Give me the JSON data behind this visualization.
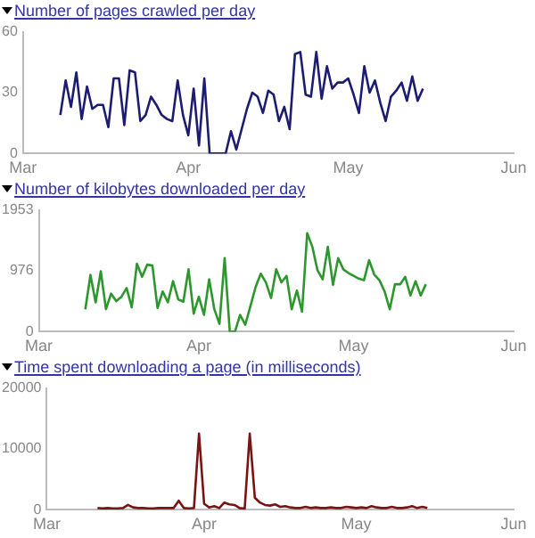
{
  "chart_data": [
    {
      "type": "line",
      "title": "Number of pages crawled per day",
      "color": "#1c1c72",
      "marker": "none",
      "grid": false,
      "legend": false,
      "x": [
        "--03-08",
        "--03-09",
        "--03-10",
        "--03-11",
        "--03-12",
        "--03-13",
        "--03-14",
        "--03-15",
        "--03-16",
        "--03-17",
        "--03-18",
        "--03-19",
        "--03-20",
        "--03-21",
        "--03-22",
        "--03-23",
        "--03-24",
        "--03-25",
        "--03-26",
        "--03-27",
        "--03-28",
        "--03-29",
        "--03-30",
        "--03-31",
        "--04-01",
        "--04-02",
        "--04-03",
        "--04-04",
        "--04-05",
        "--04-06",
        "--04-07",
        "--04-08",
        "--04-09",
        "--04-10",
        "--04-11",
        "--04-12",
        "--04-13",
        "--04-14",
        "--04-15",
        "--04-16",
        "--04-17",
        "--04-18",
        "--04-19",
        "--04-20",
        "--04-21",
        "--04-22",
        "--04-23",
        "--04-24",
        "--04-25",
        "--04-26",
        "--04-27",
        "--04-28",
        "--04-29",
        "--04-30",
        "--05-01",
        "--05-02",
        "--05-03",
        "--05-04",
        "--05-05",
        "--05-06",
        "--05-07",
        "--05-08",
        "--05-09",
        "--05-10",
        "--05-11",
        "--05-12",
        "--05-13",
        "--05-14",
        "--05-15"
      ],
      "values": [
        19,
        36,
        23,
        40,
        17,
        33,
        22,
        24,
        24,
        13,
        37,
        37,
        14,
        41,
        40,
        16,
        19,
        28,
        24,
        19,
        17,
        16,
        36,
        19,
        9,
        32,
        4,
        37,
        0,
        0,
        0,
        0,
        11,
        2,
        12,
        22,
        30,
        28,
        20,
        31,
        29,
        16,
        23,
        12,
        49,
        50,
        29,
        28,
        50,
        27,
        43,
        32,
        35,
        35,
        37,
        29,
        20,
        43,
        30,
        36,
        25,
        16,
        28,
        31,
        35,
        26,
        38,
        26,
        32
      ],
      "xlim": [
        "--03-01",
        "--06-01"
      ],
      "xticks": [
        {
          "value": "--03-01",
          "label": "Mar"
        },
        {
          "value": "--04-01",
          "label": "Apr"
        },
        {
          "value": "--05-01",
          "label": "May"
        },
        {
          "value": "--06-01",
          "label": "Jun"
        }
      ],
      "ylim": [
        0,
        60
      ],
      "yticks": [
        0,
        30,
        60
      ]
    },
    {
      "type": "line",
      "title": "Number of kilobytes downloaded per day",
      "color": "#2e962e",
      "marker": "none",
      "grid": false,
      "legend": false,
      "x": [
        "--03-10",
        "--03-11",
        "--03-12",
        "--03-13",
        "--03-14",
        "--03-15",
        "--03-16",
        "--03-17",
        "--03-18",
        "--03-19",
        "--03-20",
        "--03-21",
        "--03-22",
        "--03-23",
        "--03-24",
        "--03-25",
        "--03-26",
        "--03-27",
        "--03-28",
        "--03-29",
        "--03-30",
        "--03-31",
        "--04-01",
        "--04-02",
        "--04-03",
        "--04-04",
        "--04-05",
        "--04-06",
        "--04-07",
        "--04-08",
        "--04-09",
        "--04-10",
        "--04-11",
        "--04-12",
        "--04-13",
        "--04-14",
        "--04-15",
        "--04-16",
        "--04-17",
        "--04-18",
        "--04-19",
        "--04-20",
        "--04-21",
        "--04-22",
        "--04-23",
        "--04-24",
        "--04-25",
        "--04-26",
        "--04-27",
        "--04-28",
        "--04-29",
        "--04-30",
        "--05-01",
        "--05-02",
        "--05-03",
        "--05-04",
        "--05-05",
        "--05-06",
        "--05-07",
        "--05-08",
        "--05-09",
        "--05-10",
        "--05-11",
        "--05-12",
        "--05-13",
        "--05-14",
        "--05-15"
      ],
      "values": [
        360,
        910,
        470,
        970,
        360,
        610,
        490,
        560,
        700,
        390,
        1090,
        880,
        1075,
        1060,
        380,
        645,
        470,
        810,
        520,
        480,
        1000,
        290,
        560,
        270,
        840,
        360,
        125,
        1180,
        0,
        0,
        270,
        110,
        410,
        715,
        930,
        790,
        540,
        1000,
        790,
        895,
        360,
        660,
        320,
        1580,
        1360,
        985,
        840,
        1360,
        750,
        1180,
        1000,
        940,
        895,
        850,
        825,
        1145,
        915,
        825,
        645,
        360,
        760,
        760,
        880,
        580,
        810,
        580,
        760
      ],
      "xlim": [
        "--03-01",
        "--06-01"
      ],
      "xticks": [
        {
          "value": "--03-01",
          "label": "Mar"
        },
        {
          "value": "--04-01",
          "label": "Apr"
        },
        {
          "value": "--05-01",
          "label": "May"
        },
        {
          "value": "--06-01",
          "label": "Jun"
        }
      ],
      "ylim": [
        0,
        1953
      ],
      "yticks": [
        0,
        976,
        1953
      ]
    },
    {
      "type": "line",
      "title": "Time spent downloading a page (in milliseconds)",
      "color": "#7a1414",
      "marker": "none",
      "grid": false,
      "legend": false,
      "x": [
        "--03-11",
        "--03-12",
        "--03-13",
        "--03-14",
        "--03-15",
        "--03-16",
        "--03-17",
        "--03-18",
        "--03-19",
        "--03-20",
        "--03-21",
        "--03-22",
        "--03-23",
        "--03-24",
        "--03-25",
        "--03-26",
        "--03-27",
        "--03-28",
        "--03-29",
        "--03-30",
        "--03-31",
        "--04-01",
        "--04-02",
        "--04-03",
        "--04-04",
        "--04-05",
        "--04-06",
        "--04-07",
        "--04-08",
        "--04-09",
        "--04-10",
        "--04-11",
        "--04-12",
        "--04-13",
        "--04-14",
        "--04-15",
        "--04-16",
        "--04-17",
        "--04-18",
        "--04-19",
        "--04-20",
        "--04-21",
        "--04-22",
        "--04-23",
        "--04-24",
        "--04-25",
        "--04-26",
        "--04-27",
        "--04-28",
        "--04-29",
        "--04-30",
        "--05-01",
        "--05-02",
        "--05-03",
        "--05-04",
        "--05-05",
        "--05-06",
        "--05-07",
        "--05-08",
        "--05-09",
        "--05-10",
        "--05-11",
        "--05-12",
        "--05-13",
        "--05-14",
        "--05-15"
      ],
      "values": [
        300,
        250,
        300,
        250,
        250,
        300,
        800,
        400,
        300,
        300,
        250,
        250,
        300,
        300,
        300,
        300,
        1500,
        300,
        250,
        300,
        12500,
        1000,
        400,
        600,
        300,
        1200,
        900,
        800,
        300,
        200,
        12500,
        2000,
        1200,
        800,
        700,
        900,
        500,
        600,
        400,
        300,
        300,
        500,
        300,
        400,
        300,
        300,
        400,
        300,
        300,
        500,
        400,
        300,
        400,
        300,
        600,
        400,
        300,
        300,
        500,
        300,
        300,
        400,
        600,
        300,
        500,
        300
      ],
      "xlim": [
        "--03-01",
        "--06-01"
      ],
      "xticks": [
        {
          "value": "--03-01",
          "label": "Mar"
        },
        {
          "value": "--04-01",
          "label": "Apr"
        },
        {
          "value": "--05-01",
          "label": "May"
        },
        {
          "value": "--06-01",
          "label": "Jun"
        }
      ],
      "ylim": [
        0,
        20000
      ],
      "yticks": [
        0,
        10000,
        20000
      ]
    }
  ]
}
